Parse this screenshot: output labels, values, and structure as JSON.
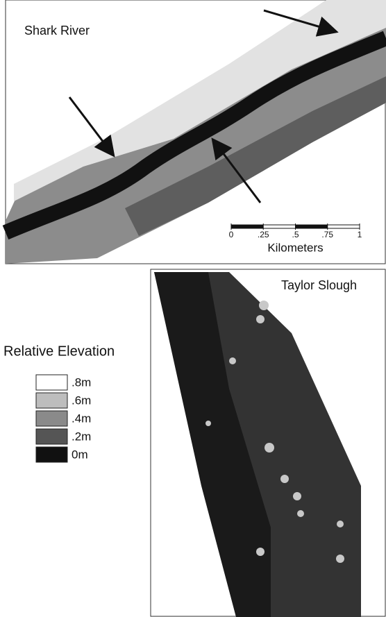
{
  "maps": [
    {
      "title": "Shark River"
    },
    {
      "title": "Taylor Slough"
    }
  ],
  "scale_bar": {
    "ticks": [
      0,
      {
        "value": 0.25,
        "label": ".25"
      },
      {
        "value": 0.5,
        "label": ".5"
      },
      {
        "value": 0.75,
        "label": ".75"
      },
      1
    ],
    "unit": "Kilometers"
  },
  "legend": {
    "title": "Relative Elevation",
    "items": [
      {
        "label": ".8m",
        "color": "#ffffff"
      },
      {
        "label": ".6m",
        "color": "#bdbdbd"
      },
      {
        "label": ".4m",
        "color": "#8a8a8a"
      },
      {
        "label": ".2m",
        "color": "#555555"
      },
      {
        "label": "0m",
        "color": "#111111"
      }
    ]
  }
}
